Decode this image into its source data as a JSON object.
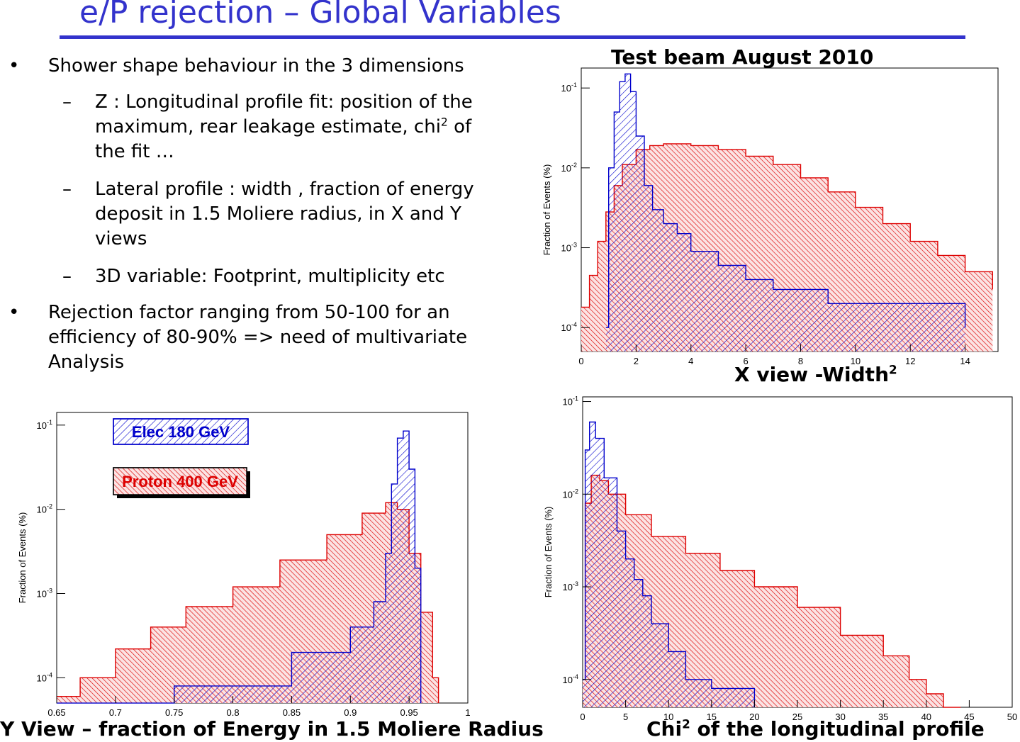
{
  "slide": {
    "title": "e/P rejection – Global Variables",
    "colors": {
      "title": "#3333cc",
      "electron": "#0000cc",
      "proton": "#dd0000"
    }
  },
  "bullets": [
    {
      "text": "Shower shape behaviour in the 3 dimensions",
      "subitems": [
        {
          "line1": "Z : Longitudinal profile fit: position of the",
          "line2a": "maximum, rear leakage estimate, chi",
          "line2sup": "2",
          "line2b": " of",
          "line3": "the fit …"
        },
        {
          "line1": "Lateral profile : width , fraction of energy",
          "line2": "deposit in 1.5 Moliere radius, in X and Y",
          "line3": "views"
        },
        {
          "line1": "3D variable: Footprint, multiplicity etc"
        }
      ]
    },
    {
      "line1": "Rejection factor ranging from 50-100 for an",
      "line2": "efficiency of 80-90% => need of multivariate",
      "line3": "Analysis"
    }
  ],
  "chart_data": [
    {
      "type": "area",
      "title": "Test beam August 2010",
      "caption": "X view -Width",
      "caption_sup": "2",
      "ylabel": "Fraction of Events (%)",
      "xlim": [
        0,
        15.2
      ],
      "ylim_log10": [
        -4.3,
        -0.75
      ],
      "y_scale": "log",
      "xticks": [
        "0",
        "2",
        "4",
        "6",
        "8",
        "10",
        "12",
        "14"
      ],
      "yticks": [
        {
          "base": "10",
          "exp": "-1",
          "value": 0.1
        },
        {
          "base": "10",
          "exp": "-2",
          "value": 0.01
        },
        {
          "base": "10",
          "exp": "-3",
          "value": 0.001
        },
        {
          "base": "10",
          "exp": "-4",
          "value": 0.0001
        }
      ],
      "series": [
        {
          "name": "Proton 400 GeV",
          "color": "#dd0000",
          "x": [
            0,
            0.3,
            0.6,
            0.9,
            1.2,
            1.5,
            2.0,
            2.5,
            3.0,
            3.5,
            4.0,
            5.0,
            6.0,
            7.0,
            8.0,
            9.0,
            10.0,
            11.0,
            12.0,
            13.0,
            14.0,
            15.0
          ],
          "y": [
            0.00018,
            0.00045,
            0.0012,
            0.0028,
            0.006,
            0.011,
            0.017,
            0.019,
            0.02,
            0.02,
            0.019,
            0.017,
            0.014,
            0.011,
            0.0075,
            0.005,
            0.0032,
            0.002,
            0.0012,
            0.0008,
            0.0005,
            0.0003
          ]
        },
        {
          "name": "Elec 180 GeV",
          "color": "#0000cc",
          "x": [
            0.9,
            1.0,
            1.2,
            1.4,
            1.6,
            1.8,
            2.0,
            2.3,
            2.6,
            3.0,
            3.5,
            4.0,
            5.0,
            6.0,
            7.0,
            8.0,
            9.0,
            10.0,
            12.0,
            14.0
          ],
          "y": [
            0.0001,
            0.01,
            0.05,
            0.12,
            0.15,
            0.09,
            0.025,
            0.006,
            0.003,
            0.002,
            0.0015,
            0.0009,
            0.0006,
            0.0004,
            0.0003,
            0.0003,
            0.0002,
            0.0002,
            0.0002,
            0.0001
          ]
        }
      ]
    },
    {
      "type": "area",
      "caption": "Y View – fraction of Energy in 1.5 Moliere Radius",
      "ylabel": "Fraction of Events (%)",
      "xlim": [
        0.65,
        1.0
      ],
      "ylim_log10": [
        -4.3,
        -0.85
      ],
      "y_scale": "log",
      "xticks": [
        "0.65",
        "0.7",
        "0.75",
        "0.8",
        "0.85",
        "0.9",
        "0.95",
        "1"
      ],
      "yticks": [
        {
          "base": "10",
          "exp": "-1",
          "value": 0.1
        },
        {
          "base": "10",
          "exp": "-2",
          "value": 0.01
        },
        {
          "base": "10",
          "exp": "-3",
          "value": 0.001
        },
        {
          "base": "10",
          "exp": "-4",
          "value": 0.0001
        }
      ],
      "legend": [
        "Elec 180 GeV",
        "Proton 400 GeV"
      ],
      "series": [
        {
          "name": "Proton 400 GeV",
          "color": "#dd0000",
          "x": [
            0.65,
            0.67,
            0.7,
            0.73,
            0.76,
            0.8,
            0.84,
            0.88,
            0.91,
            0.93,
            0.94,
            0.95,
            0.96,
            0.97,
            0.975
          ],
          "y": [
            6e-05,
            0.0001,
            0.00022,
            0.0004,
            0.0007,
            0.0012,
            0.0025,
            0.005,
            0.009,
            0.012,
            0.01,
            0.003,
            0.0006,
            0.0001,
            5e-05
          ]
        },
        {
          "name": "Elec 180 GeV",
          "color": "#0000cc",
          "x": [
            0.65,
            0.75,
            0.85,
            0.9,
            0.92,
            0.93,
            0.935,
            0.94,
            0.945,
            0.95,
            0.955,
            0.96
          ],
          "y": [
            5e-05,
            8e-05,
            0.0002,
            0.0004,
            0.0008,
            0.003,
            0.02,
            0.07,
            0.085,
            0.03,
            0.002,
            5e-05
          ]
        }
      ]
    },
    {
      "type": "area",
      "caption": "Chi",
      "caption_sup": "2",
      "caption_rest": " of the longitudinal profile",
      "ylabel": "Fraction of Events (%)",
      "xlim": [
        0,
        50
      ],
      "ylim_log10": [
        -4.3,
        -0.95
      ],
      "y_scale": "log",
      "xticks": [
        "0",
        "5",
        "10",
        "15",
        "20",
        "25",
        "30",
        "35",
        "40",
        "45",
        "50"
      ],
      "yticks": [
        {
          "base": "10",
          "exp": "-1",
          "value": 0.1
        },
        {
          "base": "10",
          "exp": "-2",
          "value": 0.01
        },
        {
          "base": "10",
          "exp": "-3",
          "value": 0.001
        },
        {
          "base": "10",
          "exp": "-4",
          "value": 0.0001
        }
      ],
      "series": [
        {
          "name": "Proton 400 GeV",
          "color": "#dd0000",
          "x": [
            0,
            0.3,
            1,
            2,
            3,
            5,
            8,
            12,
            16,
            20,
            25,
            30,
            35,
            38,
            40,
            42,
            44
          ],
          "y": [
            0.0001,
            0.008,
            0.016,
            0.014,
            0.01,
            0.006,
            0.0035,
            0.0023,
            0.0015,
            0.001,
            0.0006,
            0.0003,
            0.00018,
            0.0001,
            7e-05,
            5e-05,
            5e-05
          ]
        },
        {
          "name": "Elec 180 GeV",
          "color": "#0000cc",
          "x": [
            0,
            0.3,
            0.8,
            1.5,
            2.5,
            4,
            5,
            6,
            7,
            8,
            10,
            12,
            15,
            20
          ],
          "y": [
            0.0001,
            0.03,
            0.06,
            0.04,
            0.015,
            0.004,
            0.002,
            0.0012,
            0.0008,
            0.0004,
            0.0002,
            0.0001,
            8e-05,
            5e-05
          ]
        }
      ]
    }
  ]
}
